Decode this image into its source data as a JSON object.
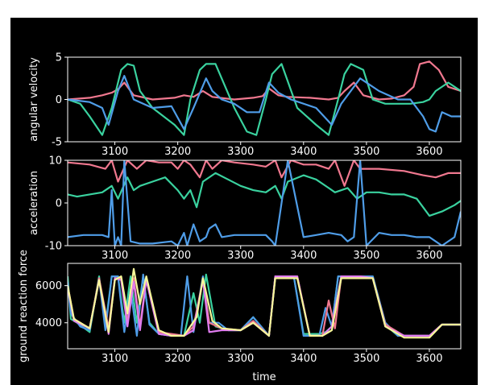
{
  "chart_data": [
    {
      "type": "line",
      "ylabel": "angular velocity",
      "xlim": [
        3025,
        3650
      ],
      "ylim": [
        -5,
        5
      ],
      "xticks": [
        3100,
        3200,
        3300,
        3400,
        3500,
        3600
      ],
      "yticks": [
        -5,
        0,
        5
      ],
      "series": [
        {
          "color": "#f0788f",
          "x": [
            3025,
            3060,
            3080,
            3095,
            3105,
            3115,
            3130,
            3160,
            3195,
            3210,
            3225,
            3240,
            3255,
            3290,
            3320,
            3335,
            3345,
            3360,
            3375,
            3410,
            3440,
            3455,
            3465,
            3480,
            3495,
            3520,
            3540,
            3560,
            3575,
            3585,
            3600,
            3615,
            3630,
            3650
          ],
          "y": [
            0,
            0.2,
            0.5,
            0.8,
            1.2,
            2,
            0.5,
            0,
            0.2,
            0.5,
            0.3,
            1,
            0.3,
            0,
            0.2,
            0.4,
            1.3,
            0.5,
            0.3,
            0.2,
            0,
            0.2,
            1,
            2,
            0.5,
            0,
            0.1,
            0.5,
            1.5,
            4.2,
            4.5,
            3.5,
            1.5,
            1
          ]
        },
        {
          "color": "#3ad29f",
          "x": [
            3025,
            3045,
            3060,
            3080,
            3095,
            3110,
            3120,
            3130,
            3140,
            3160,
            3195,
            3210,
            3220,
            3235,
            3245,
            3260,
            3290,
            3310,
            3325,
            3340,
            3350,
            3365,
            3390,
            3420,
            3440,
            3455,
            3465,
            3475,
            3495,
            3510,
            3530,
            3555,
            3570,
            3590,
            3600,
            3610,
            3630,
            3650
          ],
          "y": [
            0,
            -0.5,
            -2,
            -4.2,
            -1,
            3.5,
            4.2,
            4,
            1,
            -1,
            -3,
            -4.2,
            0,
            3.5,
            4.2,
            4.2,
            -1,
            -3.8,
            -4.2,
            0,
            3,
            4.2,
            -1,
            -3,
            -4.2,
            0,
            3,
            4.2,
            3.5,
            0,
            -0.5,
            -0.5,
            -0.5,
            -0.3,
            0,
            1,
            2,
            1
          ]
        },
        {
          "color": "#4f9de8",
          "x": [
            3025,
            3060,
            3080,
            3090,
            3105,
            3115,
            3130,
            3160,
            3190,
            3210,
            3225,
            3245,
            3255,
            3270,
            3290,
            3310,
            3330,
            3345,
            3360,
            3380,
            3420,
            3445,
            3460,
            3475,
            3490,
            3520,
            3550,
            3570,
            3590,
            3600,
            3610,
            3620,
            3635,
            3650
          ],
          "y": [
            0,
            -0.3,
            -1,
            -3,
            1,
            2.8,
            0,
            -1,
            -0.8,
            -3.5,
            -1,
            2.5,
            1,
            0,
            -0.5,
            -1.5,
            -1.5,
            2,
            0.8,
            0,
            -1,
            -3,
            -0.5,
            1,
            2.5,
            1,
            0,
            0,
            -2,
            -3.5,
            -3.8,
            -1.5,
            -2,
            -2
          ]
        }
      ]
    },
    {
      "type": "line",
      "ylabel": "acceleration",
      "xlim": [
        3025,
        3650
      ],
      "ylim": [
        -10,
        10
      ],
      "xticks": [
        3100,
        3200,
        3300,
        3400,
        3500,
        3600
      ],
      "yticks": [
        -10,
        0,
        10
      ],
      "series": [
        {
          "color": "#f0788f",
          "x": [
            3025,
            3060,
            3085,
            3095,
            3105,
            3120,
            3135,
            3150,
            3170,
            3190,
            3200,
            3210,
            3220,
            3235,
            3245,
            3255,
            3270,
            3290,
            3320,
            3340,
            3355,
            3365,
            3380,
            3400,
            3420,
            3440,
            3450,
            3465,
            3480,
            3490,
            3520,
            3560,
            3590,
            3610,
            3630,
            3650
          ],
          "y": [
            9.5,
            9,
            8,
            10,
            5,
            10,
            8,
            10,
            9.5,
            9.5,
            8,
            10,
            9,
            6,
            10,
            8,
            10,
            9.5,
            9,
            8.5,
            10,
            6,
            10,
            9,
            9,
            8,
            10,
            4,
            10,
            8,
            8,
            7.5,
            6.5,
            6,
            7,
            7
          ]
        },
        {
          "color": "#3ad29f",
          "x": [
            3025,
            3040,
            3060,
            3080,
            3095,
            3105,
            3120,
            3130,
            3140,
            3160,
            3180,
            3200,
            3210,
            3220,
            3230,
            3240,
            3260,
            3280,
            3300,
            3320,
            3340,
            3355,
            3365,
            3375,
            3400,
            3420,
            3440,
            3450,
            3470,
            3485,
            3500,
            3520,
            3540,
            3560,
            3580,
            3590,
            3600,
            3620,
            3640,
            3650
          ],
          "y": [
            2,
            1.5,
            2,
            2.5,
            4,
            1,
            6,
            3,
            4,
            5,
            6,
            3,
            1,
            3,
            -1,
            5,
            7,
            5.5,
            4,
            3,
            2.5,
            4,
            1,
            5,
            6.5,
            5.5,
            3.5,
            2.5,
            3.5,
            1,
            2.5,
            2.5,
            2,
            2,
            1,
            -1,
            -3,
            -2,
            -0.5,
            0.5
          ]
        },
        {
          "color": "#4f9de8",
          "x": [
            3025,
            3050,
            3080,
            3090,
            3095,
            3100,
            3105,
            3110,
            3115,
            3125,
            3140,
            3160,
            3190,
            3200,
            3210,
            3215,
            3225,
            3235,
            3245,
            3250,
            3260,
            3270,
            3290,
            3320,
            3340,
            3350,
            3355,
            3360,
            3375,
            3400,
            3420,
            3440,
            3460,
            3470,
            3480,
            3490,
            3500,
            3520,
            3540,
            3560,
            3580,
            3600,
            3610,
            3620,
            3640,
            3650
          ],
          "y": [
            -8,
            -7.5,
            -7.5,
            -8,
            3,
            -10,
            -8,
            -10,
            10,
            -9,
            -9.5,
            -9.5,
            -9,
            -10,
            -7,
            -10,
            -5,
            -9,
            -8,
            -6,
            -5,
            -8,
            -7.5,
            -7.5,
            -7.5,
            -9,
            -10,
            -5,
            10,
            -8,
            -7.5,
            -7,
            -7.5,
            -9,
            -8,
            10,
            -10,
            -7,
            -7.5,
            -7.5,
            -8,
            -8,
            -9,
            -10,
            -8,
            -2
          ]
        }
      ]
    },
    {
      "type": "line",
      "ylabel": "ground reaction force",
      "xlabel": "time",
      "xlim": [
        3025,
        3650
      ],
      "ylim": [
        2600,
        7200
      ],
      "xticks": [
        3100,
        3200,
        3300,
        3400,
        3500,
        3600
      ],
      "yticks": [
        4000,
        6000
      ],
      "series": [
        {
          "color": "#3ad29f",
          "x": [
            3025,
            3030,
            3040,
            3060,
            3075,
            3085,
            3095,
            3105,
            3115,
            3125,
            3135,
            3145,
            3155,
            3170,
            3190,
            3210,
            3225,
            3235,
            3245,
            3260,
            3280,
            3300,
            3320,
            3345,
            3355,
            3370,
            3385,
            3400,
            3415,
            3425,
            3435,
            3445,
            3455,
            3465,
            3490,
            3510,
            3530,
            3550,
            3575,
            3600,
            3620,
            3650
          ],
          "y": [
            6500,
            4200,
            4000,
            3500,
            6500,
            3800,
            6500,
            6500,
            4000,
            6500,
            4000,
            6500,
            4000,
            3400,
            3300,
            3300,
            5600,
            4000,
            6600,
            3800,
            3600,
            3600,
            4300,
            3300,
            6500,
            6500,
            6400,
            3400,
            3400,
            3400,
            3500,
            3800,
            6500,
            6500,
            6500,
            6500,
            3900,
            3300,
            3300,
            3300,
            3900,
            3900
          ]
        },
        {
          "color": "#4f9de8",
          "x": [
            3025,
            3030,
            3045,
            3060,
            3075,
            3085,
            3095,
            3105,
            3115,
            3125,
            3135,
            3145,
            3155,
            3170,
            3190,
            3205,
            3215,
            3225,
            3240,
            3250,
            3265,
            3280,
            3300,
            3320,
            3345,
            3355,
            3370,
            3385,
            3400,
            3415,
            3425,
            3435,
            3445,
            3455,
            3465,
            3490,
            3510,
            3530,
            3550,
            3575,
            3600,
            3620,
            3650
          ],
          "y": [
            6200,
            4500,
            3800,
            3600,
            6400,
            3600,
            6500,
            6500,
            3500,
            5800,
            3300,
            6600,
            3900,
            3400,
            3300,
            3300,
            6500,
            3500,
            6500,
            4000,
            4000,
            3600,
            3600,
            4300,
            3300,
            6500,
            6500,
            6400,
            3300,
            3300,
            3300,
            4800,
            3800,
            6500,
            6500,
            6500,
            6500,
            4000,
            3300,
            3300,
            3300,
            3900,
            3900
          ]
        },
        {
          "color": "#f0788f",
          "x": [
            3025,
            3035,
            3060,
            3075,
            3090,
            3100,
            3110,
            3120,
            3130,
            3140,
            3150,
            3170,
            3190,
            3210,
            3225,
            3240,
            3250,
            3270,
            3300,
            3320,
            3345,
            3355,
            3370,
            3390,
            3410,
            3430,
            3440,
            3450,
            3460,
            3490,
            3510,
            3530,
            3560,
            3600,
            3620,
            3650
          ],
          "y": [
            6000,
            4200,
            3700,
            6400,
            3700,
            6400,
            6400,
            4000,
            6400,
            3800,
            6400,
            3500,
            3400,
            3300,
            3800,
            6300,
            4000,
            3700,
            3600,
            4100,
            3300,
            6500,
            6500,
            6500,
            3300,
            3300,
            5200,
            3700,
            6500,
            6500,
            6400,
            3900,
            3300,
            3300,
            3900,
            3900
          ]
        },
        {
          "color": "#e07cf0",
          "x": [
            3025,
            3035,
            3060,
            3075,
            3090,
            3100,
            3110,
            3120,
            3130,
            3140,
            3150,
            3170,
            3190,
            3210,
            3225,
            3240,
            3250,
            3270,
            3300,
            3320,
            3345,
            3355,
            3370,
            3390,
            3410,
            3430,
            3445,
            3460,
            3490,
            3510,
            3530,
            3560,
            3600,
            3620,
            3650
          ],
          "y": [
            5900,
            4100,
            3700,
            6300,
            3400,
            6400,
            6300,
            3800,
            6200,
            3600,
            6300,
            3400,
            3300,
            3300,
            3600,
            6300,
            3500,
            3600,
            3600,
            4000,
            3300,
            6500,
            6500,
            6500,
            3300,
            3300,
            3800,
            6500,
            6500,
            6400,
            3800,
            3300,
            3300,
            3900,
            3900
          ]
        },
        {
          "color": "#f7f79a",
          "x": [
            3025,
            3035,
            3060,
            3075,
            3090,
            3100,
            3110,
            3120,
            3130,
            3140,
            3150,
            3170,
            3190,
            3210,
            3230,
            3240,
            3255,
            3270,
            3300,
            3320,
            3345,
            3355,
            3370,
            3390,
            3410,
            3430,
            3445,
            3460,
            3490,
            3510,
            3530,
            3560,
            3600,
            3620,
            3650
          ],
          "y": [
            6000,
            4200,
            3700,
            6300,
            3500,
            6300,
            6500,
            4500,
            6900,
            5000,
            6500,
            3600,
            3300,
            3300,
            4300,
            6400,
            4100,
            3700,
            3600,
            4000,
            3300,
            6400,
            6400,
            6400,
            3300,
            3300,
            3600,
            6400,
            6400,
            6400,
            3800,
            3200,
            3200,
            3900,
            3900
          ]
        }
      ]
    }
  ]
}
